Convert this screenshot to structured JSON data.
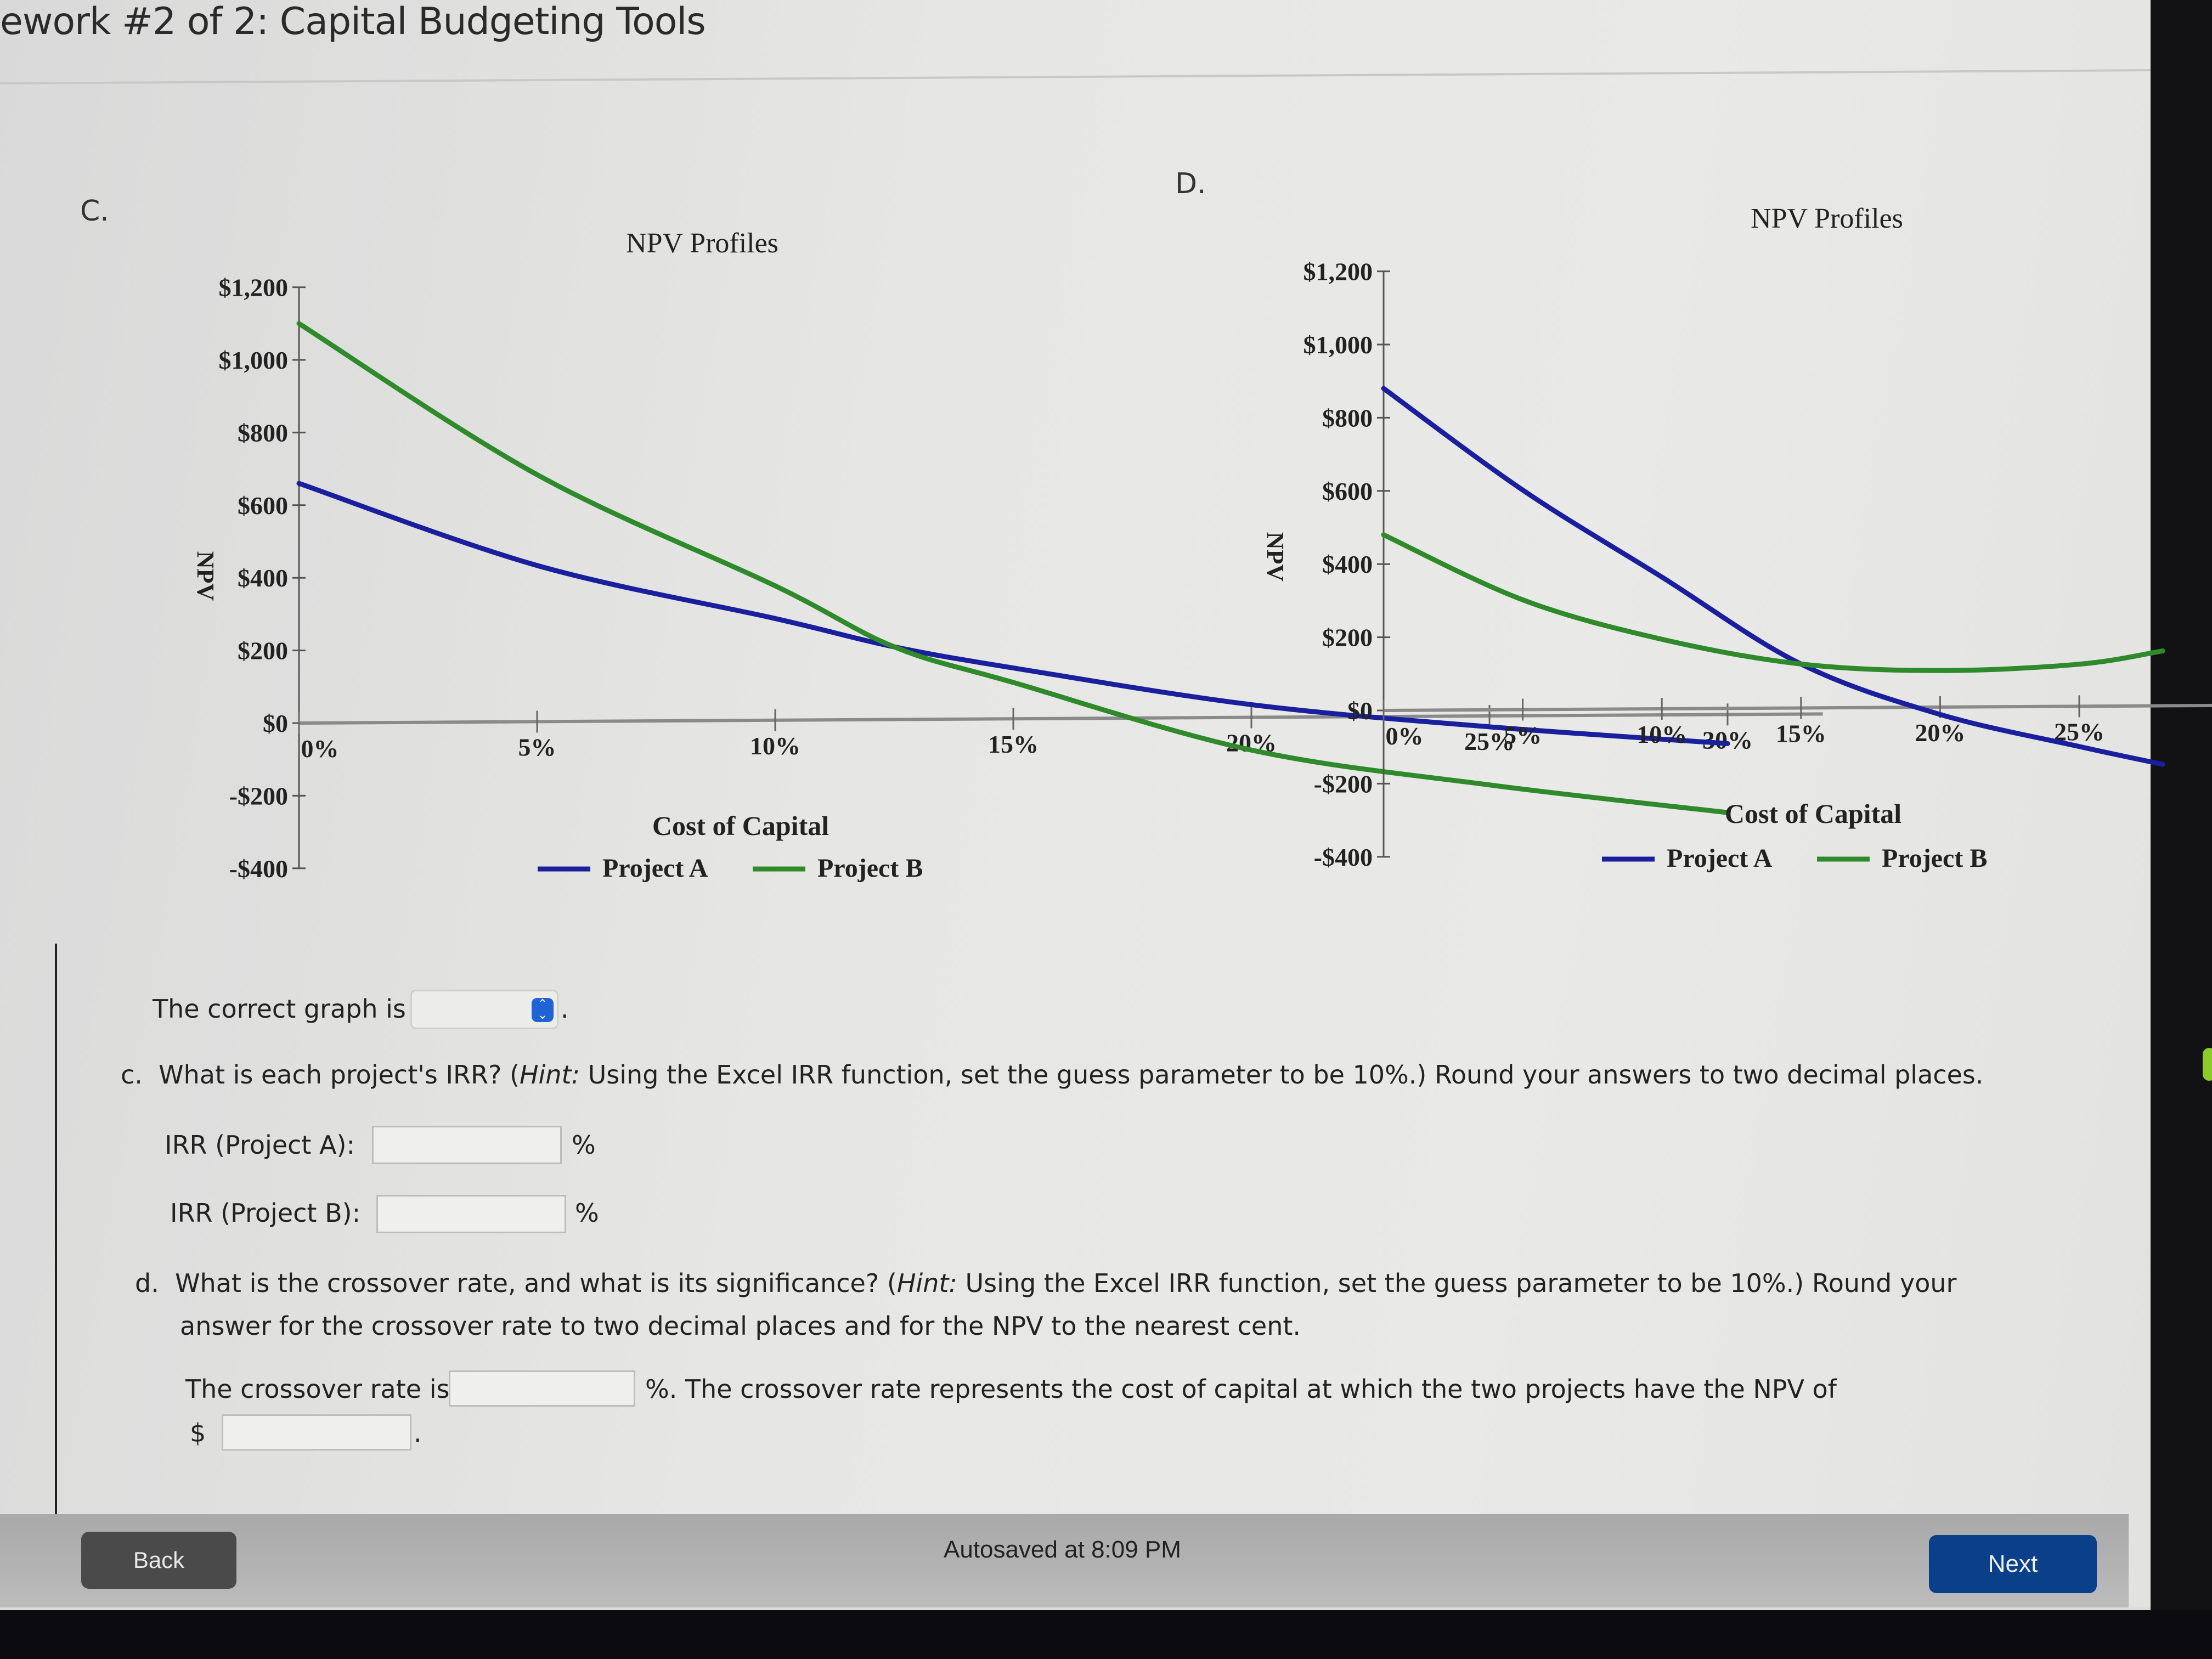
{
  "header": {
    "title": "ework #2 of 2: Capital Budgeting Tools"
  },
  "colors": {
    "project_a": "#1a1f9e",
    "project_b": "#2e8a2a",
    "next_button": "#0a3f8a",
    "back_button": "#4a4a4a",
    "select_accent": "#1f63d6"
  },
  "graphs": [
    {
      "label": "C.",
      "title": "NPV Profiles",
      "ylabel": "NPV",
      "xlabel": "Cost of Capital",
      "y_ticks": [
        "$1,200",
        "$1,000",
        "$800",
        "$600",
        "$400",
        "$200",
        "$0",
        "-$200",
        "-$400"
      ],
      "x_ticks": [
        "0%",
        "5%",
        "10%",
        "15%",
        "20%",
        "25%",
        "30%"
      ],
      "legend": [
        "Project A",
        "Project B"
      ]
    },
    {
      "label": "D.",
      "title": "NPV Profiles",
      "ylabel": "NPV",
      "xlabel": "Cost of Capital",
      "y_ticks": [
        "$1,200",
        "$1,000",
        "$800",
        "$600",
        "$400",
        "$200",
        "$0",
        "-$200",
        "-$400"
      ],
      "x_ticks": [
        "0%",
        "5%",
        "10%",
        "15%",
        "20%",
        "25%"
      ],
      "legend": [
        "Project A",
        "Project B"
      ]
    }
  ],
  "chart_data": [
    {
      "type": "line",
      "title": "NPV Profiles",
      "panel": "C",
      "xlabel": "Cost of Capital",
      "ylabel": "NPV",
      "x": [
        0,
        5,
        10,
        12.5,
        15,
        20,
        25,
        30
      ],
      "series": [
        {
          "name": "Project A",
          "color": "#1a1f9e",
          "values": [
            660,
            430,
            280,
            200,
            140,
            35,
            -30,
            -80
          ]
        },
        {
          "name": "Project B",
          "color": "#2e8a2a",
          "values": [
            1100,
            680,
            370,
            200,
            100,
            -90,
            -190,
            -270
          ]
        }
      ],
      "xlim": [
        0,
        30
      ],
      "ylim": [
        -400,
        1200
      ],
      "grid": false,
      "legend_position": "bottom"
    },
    {
      "type": "line",
      "title": "NPV Profiles",
      "panel": "D",
      "xlabel": "Cost of Capital",
      "ylabel": "NPV",
      "x": [
        0,
        5,
        10,
        15,
        20,
        25,
        28
      ],
      "series": [
        {
          "name": "Project A",
          "color": "#1a1f9e",
          "values": [
            880,
            600,
            360,
            120,
            -20,
            -110,
            -160
          ]
        },
        {
          "name": "Project B",
          "color": "#2e8a2a",
          "values": [
            480,
            300,
            190,
            120,
            100,
            115,
            150
          ]
        }
      ],
      "xlim": [
        0,
        28
      ],
      "ylim": [
        -400,
        1200
      ],
      "grid": false,
      "legend_position": "bottom"
    }
  ],
  "graph_select": {
    "prefix": "The correct graph is",
    "value": "",
    "suffix": "."
  },
  "part_c": {
    "prefix": "c.",
    "question_a": "What is each project's IRR? (",
    "hint_label": "Hint:",
    "question_b": " Using the Excel IRR function, set the guess parameter to be 10%.) Round your answers to two decimal places.",
    "fields": [
      {
        "label": "IRR (Project A):",
        "value": "",
        "unit": "%"
      },
      {
        "label": "IRR (Project B):",
        "value": "",
        "unit": "%"
      }
    ]
  },
  "part_d": {
    "prefix": "d.",
    "line1_a": "What is the crossover rate, and what is its significance? (",
    "hint_label": "Hint:",
    "line1_b": " Using the Excel IRR function, set the guess parameter to be 10%.) Round your",
    "line2": "answer for the crossover rate to two decimal places and for the NPV to the nearest cent.",
    "crossover_label": "The crossover rate is",
    "crossover_value": "",
    "crossover_suffix": "%. The crossover rate represents the cost of capital at which the two projects have the NPV of",
    "npv_currency": "$",
    "npv_value": "",
    "npv_suffix": "."
  },
  "footer": {
    "back_label": "Back",
    "autosave": "Autosaved at 8:09 PM",
    "next_label": "Next"
  }
}
